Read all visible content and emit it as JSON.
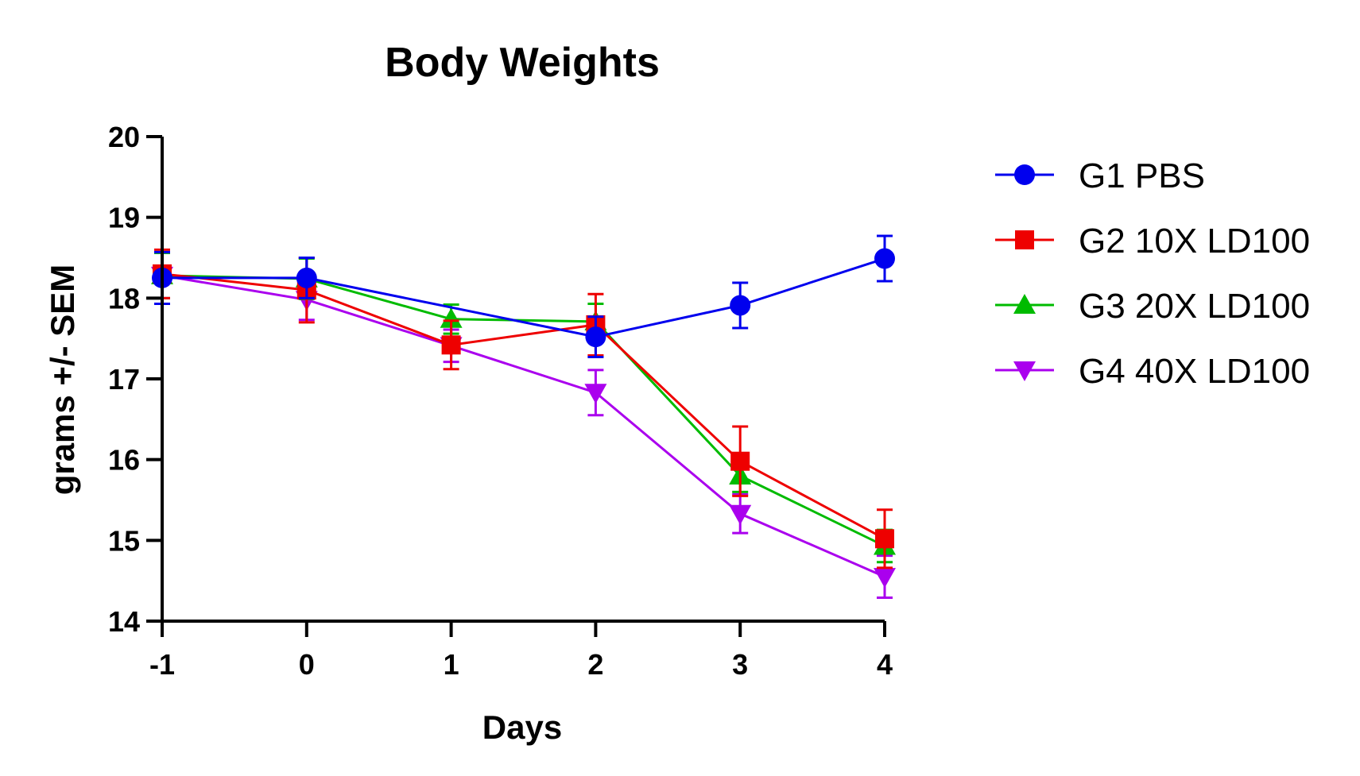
{
  "chart_data": {
    "type": "line",
    "title": "Body Weights",
    "xlabel": "Days",
    "ylabel": "grams +/- SEM",
    "x": [
      -1,
      0,
      1,
      2,
      3,
      4
    ],
    "xlim": [
      -1,
      4
    ],
    "ylim": [
      14,
      20
    ],
    "xticks": [
      "-1",
      "0",
      "1",
      "2",
      "3",
      "4"
    ],
    "yticks": [
      "14",
      "15",
      "16",
      "17",
      "18",
      "19",
      "20"
    ],
    "grid": false,
    "legend_position": "right",
    "series": [
      {
        "name": "G1 PBS",
        "color": "#0000ee",
        "marker": "circle",
        "values": [
          18.25,
          18.25,
          null,
          17.52,
          17.91,
          18.49
        ],
        "errors": [
          0.32,
          0.25,
          null,
          0.25,
          0.28,
          0.28
        ]
      },
      {
        "name": "G2 10X LD100",
        "color": "#ee0000",
        "marker": "square",
        "values": [
          18.3,
          18.1,
          17.42,
          17.67,
          15.98,
          15.02
        ],
        "errors": [
          0.3,
          0.4,
          0.3,
          0.38,
          0.43,
          0.36
        ]
      },
      {
        "name": "G3 20X LD100",
        "color": "#00bb00",
        "marker": "triangle-up",
        "values": [
          18.28,
          18.24,
          17.74,
          17.71,
          15.8,
          14.93
        ],
        "errors": [
          0.28,
          0.25,
          0.18,
          0.22,
          0.2,
          0.2
        ]
      },
      {
        "name": "G4 40X LD100",
        "color": "#aa00ee",
        "marker": "triangle-down",
        "values": [
          18.28,
          17.98,
          17.41,
          16.83,
          15.33,
          14.55
        ],
        "errors": [
          0.28,
          0.25,
          0.2,
          0.28,
          0.24,
          0.26
        ]
      }
    ]
  }
}
